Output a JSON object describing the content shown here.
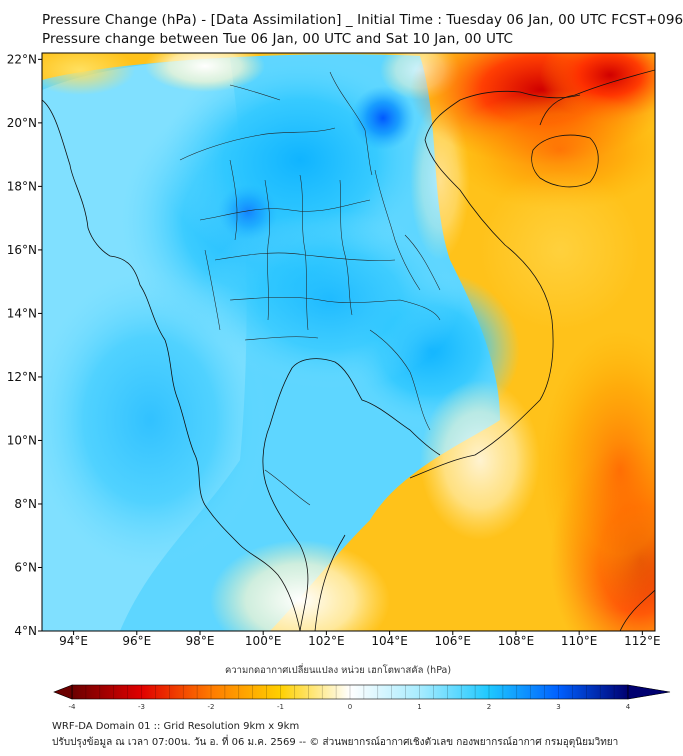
{
  "title": {
    "line1": "Pressure Change (hPa) - [Data Assimilation] _ Initial Time : Tuesday 06 Jan, 00 UTC FCST+096",
    "line2": "Pressure change between Tue 06 Jan, 00 UTC and Sat 10 Jan, 00 UTC"
  },
  "map": {
    "lat_labels": [
      "22°N",
      "20°N",
      "18°N",
      "16°N",
      "14°N",
      "12°N",
      "10°N",
      "8°N",
      "6°N",
      "4°N"
    ],
    "lon_labels": [
      "94°E",
      "96°E",
      "98°E",
      "100°E",
      "102°E",
      "104°E",
      "106°E",
      "108°E",
      "110°E",
      "112°E"
    ],
    "lat_values": [
      22,
      20,
      18,
      16,
      14,
      12,
      10,
      8,
      6,
      4
    ],
    "lon_values": [
      94,
      96,
      98,
      100,
      102,
      104,
      106,
      108,
      110,
      112
    ]
  },
  "colorbar": {
    "label": "ความกดอากาศเปลี่ยนแปลง หน่วย เฮกโตพาสคัล (hPa)",
    "ticks": [
      "-4",
      "-3",
      "-2",
      "-1",
      "0",
      "1",
      "2",
      "3",
      "4"
    ],
    "range": [
      -4,
      4
    ],
    "colors": {
      "neg4": "#6b0000",
      "neg3": "#e00000",
      "neg2": "#ff7a00",
      "neg1": "#ffd000",
      "zero": "#ffffff",
      "pos1": "#a8ecff",
      "pos2": "#1ec8ff",
      "pos3": "#0060ff",
      "pos4": "#000070"
    }
  },
  "footer": {
    "line1": "WRF-DA Domain 01 :: Grid Resolution 9km x 9km",
    "line2": "ปรับปรุงข้อมูล ณ เวลา 07:00น. วัน อ. ที่ 06 ม.ค. 2569 -- © ส่วนพยากรณ์อากาศเชิงตัวเลข กองพยากรณ์อากาศ กรมอุตุนิยมวิทยา"
  }
}
